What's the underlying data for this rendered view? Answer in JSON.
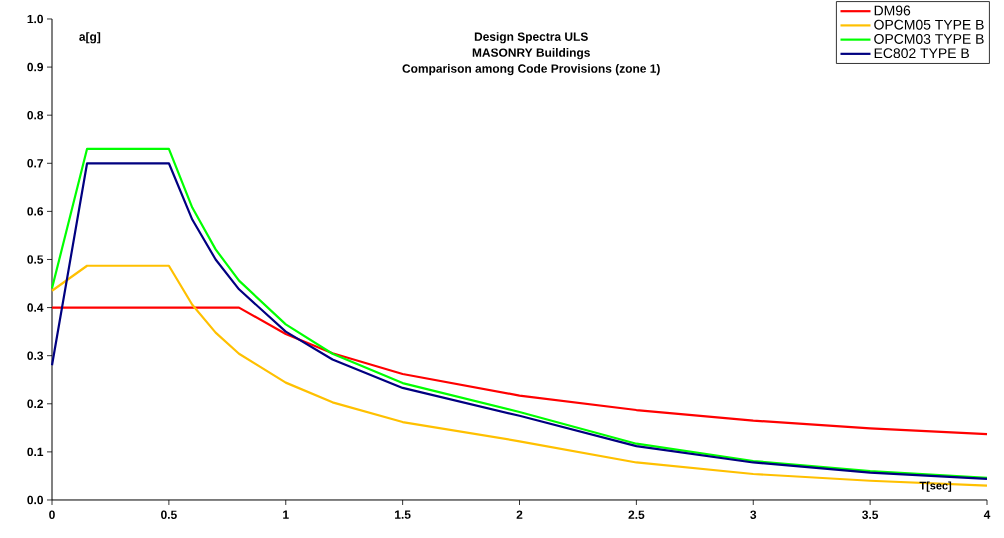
{
  "chart_data": {
    "type": "line",
    "title": "Design Spectra ULS",
    "subtitle": "MASONRY Buildings",
    "annotations": [
      "Comparison among Code Provisions (zone 1)"
    ],
    "xlabel": "T[sec]",
    "ylabel": "a[g]",
    "xlim": [
      0,
      4
    ],
    "ylim": [
      0,
      1
    ],
    "xticks": [
      0,
      0.5,
      1,
      1.5,
      2,
      2.5,
      3,
      3.5,
      4
    ],
    "yticks": [
      {
        "value": 0,
        "label": "0.0"
      },
      0.1,
      0.2,
      0.3,
      0.4,
      0.5,
      0.6,
      0.7,
      0.8,
      0.9,
      {
        "value": 1,
        "label": "1.0"
      }
    ],
    "grid": false,
    "legend": "top right",
    "marker": "none",
    "line_style": "solid",
    "series": [
      {
        "name": "DM96",
        "color": "#ff0000",
        "x": [
          0,
          0.8,
          1,
          1.2,
          1.5,
          2,
          2.5,
          3,
          3.5,
          4
        ],
        "values": [
          0.4,
          0.4,
          0.345,
          0.305,
          0.262,
          0.217,
          0.187,
          0.165,
          0.149,
          0.137
        ]
      },
      {
        "name": "OPCM05 TYPE B",
        "color": "#ffc000",
        "x": [
          0,
          0.15,
          0.5,
          0.6,
          0.7,
          0.8,
          1,
          1.2,
          1.5,
          2,
          2.5,
          3,
          3.5,
          4
        ],
        "values": [
          0.435,
          0.487,
          0.487,
          0.406,
          0.348,
          0.304,
          0.244,
          0.203,
          0.162,
          0.122,
          0.078,
          0.054,
          0.04,
          0.03
        ]
      },
      {
        "name": "OPCM03 TYPE B",
        "color": "#00ff00",
        "x": [
          0,
          0.15,
          0.5,
          0.6,
          0.7,
          0.8,
          1,
          1.2,
          1.5,
          2,
          2.5,
          3,
          3.5,
          4
        ],
        "values": [
          0.44,
          0.73,
          0.73,
          0.608,
          0.521,
          0.456,
          0.365,
          0.304,
          0.243,
          0.183,
          0.117,
          0.081,
          0.06,
          0.046
        ]
      },
      {
        "name": "EC802 TYPE B",
        "color": "#000080",
        "x": [
          0,
          0.15,
          0.5,
          0.6,
          0.7,
          0.8,
          1,
          1.2,
          1.5,
          2,
          2.5,
          3,
          3.5,
          4
        ],
        "values": [
          0.28,
          0.7,
          0.7,
          0.583,
          0.5,
          0.438,
          0.35,
          0.292,
          0.233,
          0.175,
          0.112,
          0.078,
          0.057,
          0.044
        ]
      }
    ]
  }
}
